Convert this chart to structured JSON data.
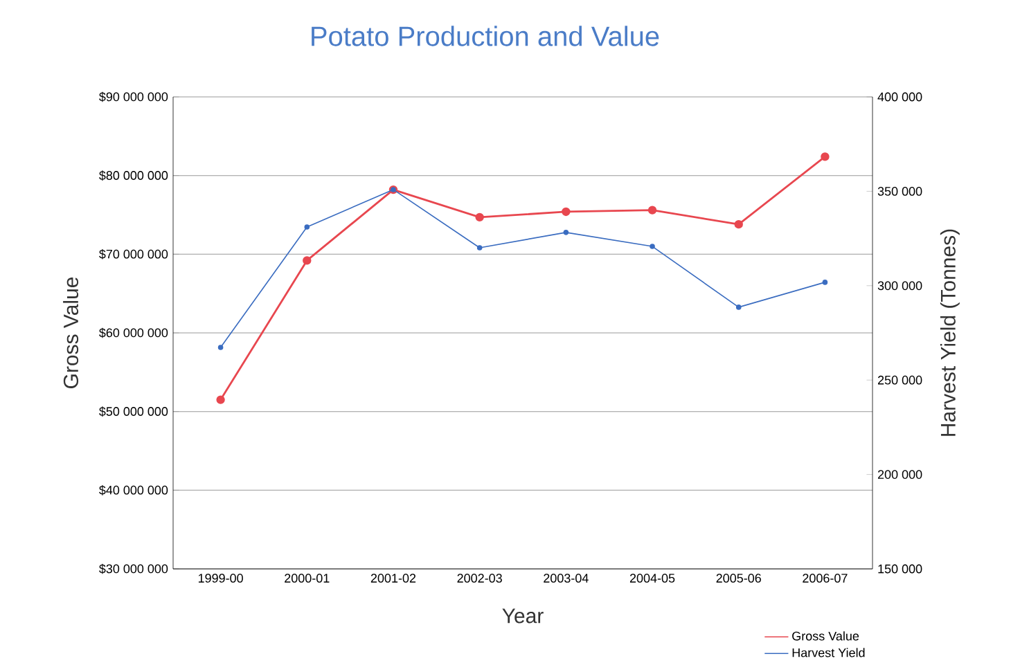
{
  "chart_data": {
    "type": "line",
    "title": "Potato Production and Value",
    "xlabel": "Year",
    "ylabel": "Gross Value",
    "y2label": "Harvest Yield (Tonnes)",
    "categories": [
      "1999-00",
      "2000-01",
      "2001-02",
      "2002-03",
      "2003-04",
      "2004-05",
      "2005-06",
      "2006-07"
    ],
    "series": [
      {
        "name": "Gross Value",
        "color": "#e8474f",
        "values": [
          51500000,
          69200000,
          78200000,
          74700000,
          75400000,
          75600000,
          73800000,
          82400000
        ]
      },
      {
        "name": "Harvest Yield",
        "color": "#3a6cc0",
        "axis": "y2",
        "values": [
          267300,
          331100,
          350900,
          320100,
          328200,
          320800,
          288600,
          301800
        ]
      }
    ],
    "ylim": [
      30000000,
      90000000
    ],
    "yticks": [
      {
        "value": 30000000,
        "label": "$30 000 000"
      },
      {
        "value": 40000000,
        "label": "$40 000 000"
      },
      {
        "value": 50000000,
        "label": "$50 000 000"
      },
      {
        "value": 60000000,
        "label": "$60 000 000"
      },
      {
        "value": 70000000,
        "label": "$70 000 000"
      },
      {
        "value": 80000000,
        "label": "$80 000 000"
      },
      {
        "value": 90000000,
        "label": "$90 000 000"
      }
    ],
    "y2lim": [
      150000,
      400000
    ],
    "y2ticks": [
      {
        "value": 150000,
        "label": "150 000"
      },
      {
        "value": 200000,
        "label": "200 000"
      },
      {
        "value": 250000,
        "label": "250 000"
      },
      {
        "value": 300000,
        "label": "300 000"
      },
      {
        "value": 350000,
        "label": "350 000"
      },
      {
        "value": 400000,
        "label": "400 000"
      }
    ],
    "grid": "y",
    "legend": "bottom right",
    "marker": "circle",
    "line_style": "solid"
  }
}
